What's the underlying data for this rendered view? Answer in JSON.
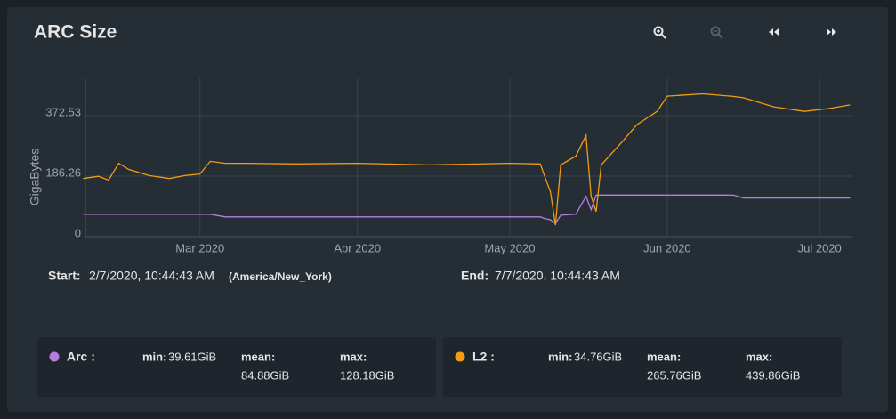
{
  "chart_data": {
    "type": "line",
    "title": "ARC Size",
    "y_label": "GigaBytes",
    "x": [
      "2020-02-07",
      "2020-02-10",
      "2020-02-12",
      "2020-02-14",
      "2020-02-16",
      "2020-02-20",
      "2020-02-24",
      "2020-02-27",
      "2020-03-01",
      "2020-03-03",
      "2020-03-06",
      "2020-03-10",
      "2020-03-20",
      "2020-04-01",
      "2020-04-15",
      "2020-05-01",
      "2020-05-07",
      "2020-05-08",
      "2020-05-09",
      "2020-05-10",
      "2020-05-11",
      "2020-05-14",
      "2020-05-16",
      "2020-05-17",
      "2020-05-18",
      "2020-05-19",
      "2020-05-23",
      "2020-05-26",
      "2020-05-30",
      "2020-06-01",
      "2020-06-08",
      "2020-06-14",
      "2020-06-16",
      "2020-06-22",
      "2020-06-28",
      "2020-07-03",
      "2020-07-07"
    ],
    "series": [
      {
        "name": "Arc :",
        "color": "#b57edc",
        "values": [
          69,
          69,
          69,
          69,
          69,
          69,
          69,
          69,
          69,
          69,
          61,
          61,
          61,
          61,
          61,
          61,
          61,
          55,
          52,
          40,
          66,
          69,
          124,
          83,
          128,
          128,
          128,
          128,
          128,
          128,
          128,
          128,
          119,
          119,
          119,
          119,
          119
        ],
        "stats": [
          "39.61GiB",
          "84.88GiB",
          "128.18GiB"
        ]
      },
      {
        "name": "L2 :",
        "color": "#f39c12",
        "values": [
          179,
          186,
          174,
          226,
          207,
          188,
          179,
          188,
          193,
          232,
          226,
          226,
          224,
          226,
          221,
          226,
          224,
          180,
          138,
          35,
          221,
          248,
          312,
          124,
          77,
          221,
          290,
          345,
          386,
          433,
          440,
          432,
          428,
          400,
          386,
          395,
          406
        ],
        "stats": [
          "34.76GiB",
          "265.76GiB",
          "439.86GiB"
        ]
      }
    ],
    "stat_labels": [
      "min:",
      "mean:",
      "max:"
    ],
    "xlim": [
      "2020-02-07T10:44:43",
      "2020-07-07T10:44:43"
    ],
    "xticks": [
      {
        "value": "2020-03-01",
        "label": "Mar 2020"
      },
      {
        "value": "2020-04-01",
        "label": "Apr 2020"
      },
      {
        "value": "2020-05-01",
        "label": "May 2020"
      },
      {
        "value": "2020-06-01",
        "label": "Jun 2020"
      },
      {
        "value": "2020-07-01",
        "label": "Jul 2020"
      }
    ],
    "ylim": [
      0,
      488
    ],
    "yticks": [
      0,
      186.26,
      372.53
    ],
    "grid": true,
    "start_label": "Start:",
    "start": "2/7/2020, 10:44:43 AM",
    "timezone": "(America/New_York)",
    "end_label": "End:",
    "end": "7/7/2020, 10:44:43 AM"
  }
}
